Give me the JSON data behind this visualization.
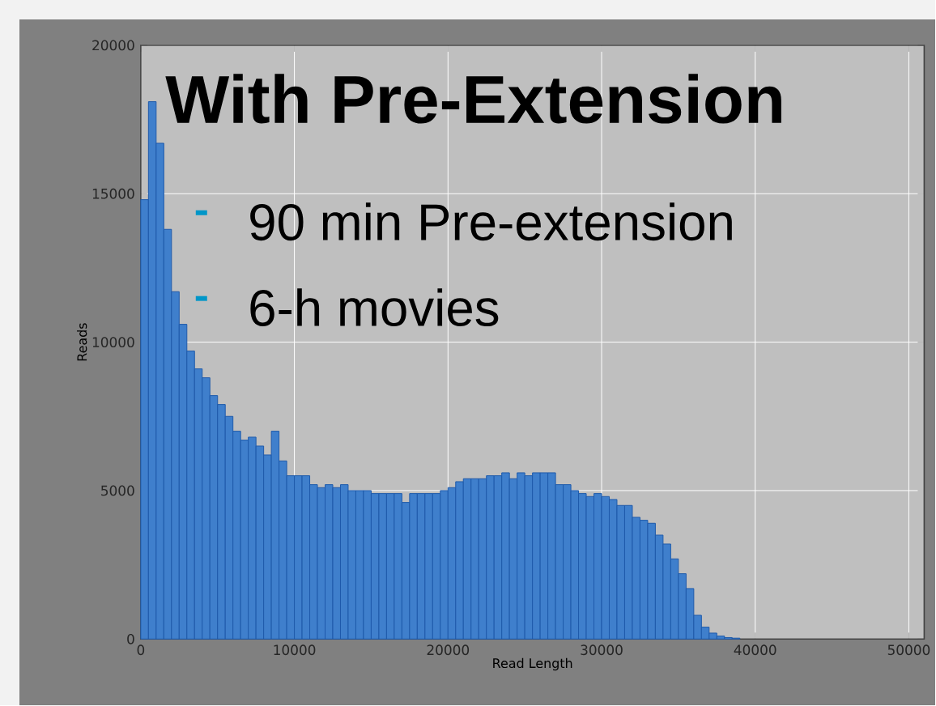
{
  "chart_data": {
    "type": "histogram",
    "title": "With Pre-Extension",
    "annotations": [
      "90 min Pre-extension",
      "6-h movies"
    ],
    "xlabel": "Read Length",
    "ylabel": "Reads",
    "color": "#3f7fcc",
    "bins": [
      0,
      500,
      1000,
      1500,
      2000,
      2500,
      3000,
      3500,
      4000,
      4500,
      5000,
      5500,
      6000,
      6500,
      7000,
      7500,
      8000,
      8500,
      9000,
      9500,
      10000,
      10500,
      11000,
      11500,
      12000,
      12500,
      13000,
      13500,
      14000,
      14500,
      15000,
      15500,
      16000,
      16500,
      17000,
      17500,
      18000,
      18500,
      19000,
      19500,
      20000,
      20500,
      21000,
      21500,
      22000,
      22500,
      23000,
      23500,
      24000,
      24500,
      25000,
      25500,
      26000,
      26500,
      27000,
      27500,
      28000,
      28500,
      29000,
      29500,
      30000,
      30500,
      31000,
      31500,
      32000,
      32500,
      33000,
      33500,
      34000,
      34500,
      35000,
      35500,
      36000,
      36500,
      37000,
      37500,
      38000,
      38500,
      39000
    ],
    "values": [
      14800,
      18100,
      16700,
      13800,
      11700,
      10600,
      9700,
      9100,
      8800,
      8200,
      7900,
      7500,
      7000,
      6700,
      6800,
      6500,
      6200,
      7000,
      6000,
      5500,
      5500,
      5500,
      5200,
      5100,
      5200,
      5100,
      5200,
      5000,
      5000,
      5000,
      4900,
      4900,
      4900,
      4900,
      4600,
      4900,
      4900,
      4900,
      4900,
      5000,
      5100,
      5300,
      5400,
      5400,
      5400,
      5500,
      5500,
      5600,
      5400,
      5600,
      5500,
      5600,
      5600,
      5600,
      5200,
      5200,
      5000,
      4900,
      4800,
      4900,
      4800,
      4700,
      4500,
      4500,
      4100,
      4000,
      3900,
      3500,
      3200,
      2700,
      2200,
      1700,
      800,
      400,
      200,
      100,
      50,
      30
    ],
    "xlim": [
      0,
      51000
    ],
    "ylim": [
      0,
      20000
    ],
    "xticks": [
      0,
      10000,
      20000,
      30000,
      40000,
      50000
    ],
    "yticks": [
      0,
      5000,
      10000,
      15000,
      20000
    ],
    "grid": true
  }
}
